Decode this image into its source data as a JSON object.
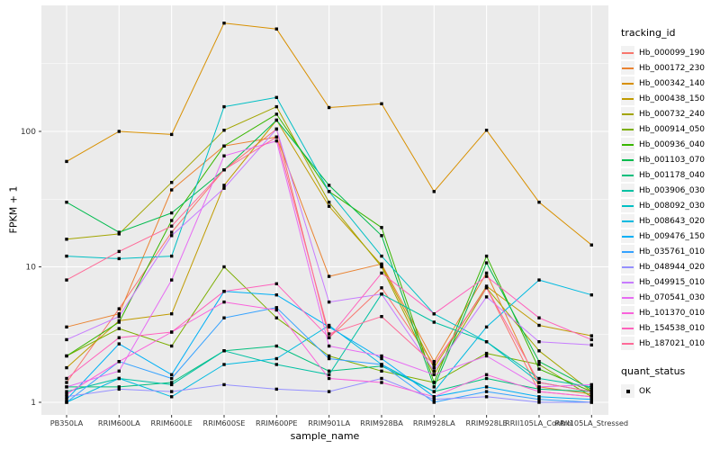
{
  "panel": {
    "background": "#EBEBEB",
    "grid_color": "#FFFFFF",
    "tick_color": "#333333",
    "marker_color": "#000000"
  },
  "chart_data": {
    "type": "line",
    "title": "",
    "xlabel": "sample_name",
    "ylabel": "FPKM + 1",
    "y_scale": "log10",
    "y_ticks": [
      1,
      10,
      100
    ],
    "y_tick_labels": [
      "1",
      "10",
      "100"
    ],
    "y_minor_ticks": [
      3.162,
      31.62,
      316.2
    ],
    "ylim": [
      0.95,
      850
    ],
    "grid": "major-and-minor-white-on-gray",
    "legend_position": "right",
    "point_shape": "filled-black-square",
    "categories": [
      "PB350LA",
      "RRIM600LA",
      "RRIM600LE",
      "RRIM600SE",
      "RRIM600PE",
      "RRIM901LA",
      "RRIM928BA",
      "RRIM928LA",
      "RRIM928LE",
      "RRII105LA_Control",
      "RRII105LA_Stressed"
    ],
    "legend": {
      "color_title": "tracking_id",
      "shape_title": "quant_status",
      "shape_items": [
        {
          "label": "OK",
          "shape": "filled-square",
          "color": "#000000"
        }
      ]
    },
    "series": [
      {
        "name": "Hb_000099_190",
        "color": "#F8766D",
        "values": [
          1.4,
          4.9,
          18,
          52,
          104,
          3,
          7,
          1.9,
          7,
          1.2,
          1.1
        ]
      },
      {
        "name": "Hb_000172_230",
        "color": "#EA8331",
        "values": [
          3.6,
          4.5,
          37,
          78,
          91,
          8.5,
          10.5,
          2,
          9,
          1.3,
          1.15
        ]
      },
      {
        "name": "Hb_000342_140",
        "color": "#D89000",
        "values": [
          60,
          100,
          95,
          630,
          570,
          150,
          160,
          36,
          102,
          30,
          14.5
        ]
      },
      {
        "name": "Hb_000438_150",
        "color": "#C09B00",
        "values": [
          1.8,
          4,
          4.5,
          40,
          121,
          28,
          10.3,
          1.8,
          7.2,
          3.7,
          3.1
        ]
      },
      {
        "name": "Hb_000732_240",
        "color": "#A3A500",
        "values": [
          16,
          17.5,
          42,
          102,
          152,
          30,
          10,
          1.6,
          7,
          2.4,
          1.2
        ]
      },
      {
        "name": "Hb_000914_050",
        "color": "#7CAE00",
        "values": [
          2.2,
          3.5,
          2.6,
          10,
          4.2,
          2.2,
          1.7,
          1.4,
          2.3,
          1.9,
          1.1
        ]
      },
      {
        "name": "Hb_000936_040",
        "color": "#39B600",
        "values": [
          2.2,
          3.9,
          22,
          78,
          134,
          36,
          19.5,
          1.4,
          12,
          1.76,
          1.2
        ]
      },
      {
        "name": "Hb_001103_070",
        "color": "#00BB4E",
        "values": [
          30,
          18,
          25,
          52,
          121,
          40,
          17,
          1.3,
          10.7,
          2,
          1.25
        ]
      },
      {
        "name": "Hb_001178_040",
        "color": "#00BF7D",
        "values": [
          1.3,
          1.3,
          1.4,
          2.4,
          2.6,
          1.7,
          1.85,
          1.2,
          1.5,
          1.25,
          1.2
        ]
      },
      {
        "name": "Hb_003906_030",
        "color": "#00C1A3",
        "values": [
          1.2,
          1.5,
          1.35,
          2.4,
          1.9,
          1.6,
          6.3,
          3.9,
          2.8,
          1.5,
          1.3
        ]
      },
      {
        "name": "Hb_008092_030",
        "color": "#00BFC4",
        "values": [
          12,
          11.5,
          12,
          152,
          178,
          36,
          12,
          4.5,
          2.8,
          1.4,
          1.2
        ]
      },
      {
        "name": "Hb_008643_020",
        "color": "#00BAE0",
        "values": [
          1,
          1.5,
          1.1,
          1.9,
          2.1,
          3.7,
          1.9,
          1.2,
          3.6,
          8,
          6.2
        ]
      },
      {
        "name": "Hb_009476_150",
        "color": "#00B0F6",
        "values": [
          1.05,
          2.7,
          1.6,
          6.6,
          6.2,
          3.6,
          2.1,
          1.1,
          1.3,
          1.1,
          1.05
        ]
      },
      {
        "name": "Hb_035761_010",
        "color": "#35A2FF",
        "values": [
          1,
          2,
          1.5,
          4.2,
          5,
          2.1,
          1.9,
          1,
          1.2,
          1.05,
          1
        ]
      },
      {
        "name": "Hb_048944_020",
        "color": "#9590FF",
        "values": [
          1.1,
          1.25,
          1.2,
          1.35,
          1.25,
          1.2,
          1.5,
          1.05,
          1.1,
          1,
          1
        ]
      },
      {
        "name": "Hb_049915_010",
        "color": "#C77CFF",
        "values": [
          2.9,
          4.3,
          17,
          38,
          104,
          5.5,
          6.3,
          1.7,
          6,
          2.8,
          2.65
        ]
      },
      {
        "name": "Hb_070541_030",
        "color": "#E76BF3",
        "values": [
          1.3,
          1.7,
          8,
          66,
          85,
          2.6,
          2.2,
          1.6,
          2.2,
          1.3,
          1.35
        ]
      },
      {
        "name": "Hb_101370_010",
        "color": "#FA62DB",
        "values": [
          1.15,
          2,
          3.3,
          5.5,
          4.8,
          1.5,
          1.4,
          1.1,
          1.6,
          1.2,
          1.1
        ]
      },
      {
        "name": "Hb_154538_010",
        "color": "#FF62BC",
        "values": [
          1.5,
          3,
          3.3,
          6.6,
          7.5,
          3,
          9,
          4.5,
          8.5,
          4.2,
          2.9
        ]
      },
      {
        "name": "Hb_187021_010",
        "color": "#FF6A98",
        "values": [
          8,
          13,
          20,
          52,
          91,
          3.2,
          4.3,
          1.9,
          7,
          1.4,
          1.2
        ]
      }
    ]
  }
}
